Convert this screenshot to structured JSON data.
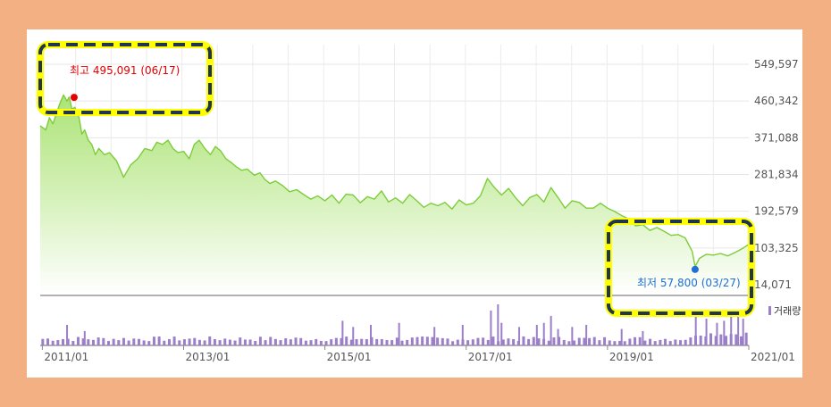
{
  "chart_data": {
    "type": "area",
    "colors": {
      "line": "#7ccd3a",
      "fill_top": "#a8e26f",
      "fill_bottom": "#ffffff",
      "volume": "#9b7fc9",
      "high": "#e60000",
      "low": "#1f6fd6",
      "highlight_border": "#ffff00",
      "highlight_inner": "#1f3550"
    },
    "y_ticks": [
      "549,597",
      "460,342",
      "371,088",
      "281,834",
      "192,579",
      "103,325",
      "14,071"
    ],
    "y_tick_values": [
      549597,
      460342,
      371088,
      281834,
      192579,
      103325,
      14071
    ],
    "ylim": [
      14071,
      549597
    ],
    "x_ticks": [
      "2011/01",
      "2013/01",
      "2015/01",
      "2017/01",
      "2019/01",
      "2021/01"
    ],
    "x_tick_values": [
      2011.0,
      2013.0,
      2015.0,
      2017.0,
      2019.0,
      2021.0
    ],
    "xlim": [
      2010.97,
      2021.0
    ],
    "volume_legend": "거래량",
    "high_label": "최고 495,091 (06/17)",
    "low_label": "최저 57,800 (03/27)",
    "series": [
      {
        "x": [
          2010.97,
          2011.05,
          2011.1,
          2011.15,
          2011.2,
          2011.25,
          2011.3,
          2011.35,
          2011.38,
          2011.42,
          2011.46,
          2011.52,
          2011.56,
          2011.6,
          2011.65,
          2011.7,
          2011.75,
          2011.8,
          2011.88,
          2011.95,
          2012.05,
          2012.15,
          2012.25,
          2012.35,
          2012.45,
          2012.55,
          2012.62,
          2012.7,
          2012.78,
          2012.85,
          2012.92,
          2013.0,
          2013.08,
          2013.15,
          2013.22,
          2013.3,
          2013.38,
          2013.45,
          2013.52,
          2013.6,
          2013.68,
          2013.75,
          2013.82,
          2013.9,
          2014.0,
          2014.08,
          2014.15,
          2014.22,
          2014.3,
          2014.4,
          2014.5,
          2014.6,
          2014.7,
          2014.8,
          2014.9,
          2015.0,
          2015.1,
          2015.2,
          2015.3,
          2015.4,
          2015.5,
          2015.6,
          2015.7,
          2015.8,
          2015.9,
          2016.0,
          2016.1,
          2016.2,
          2016.3,
          2016.4,
          2016.5,
          2016.6,
          2016.7,
          2016.8,
          2016.9,
          2017.0,
          2017.1,
          2017.2,
          2017.3,
          2017.4,
          2017.5,
          2017.6,
          2017.7,
          2017.8,
          2017.9,
          2018.0,
          2018.1,
          2018.2,
          2018.3,
          2018.4,
          2018.5,
          2018.6,
          2018.7,
          2018.8,
          2018.9,
          2019.0,
          2019.1,
          2019.2,
          2019.3,
          2019.4,
          2019.5,
          2019.6,
          2019.7,
          2019.8,
          2019.9,
          2020.0,
          2020.1,
          2020.2,
          2020.24,
          2020.3,
          2020.4,
          2020.5,
          2020.6,
          2020.7,
          2020.8,
          2020.9,
          2021.0
        ],
        "values": [
          400000,
          390000,
          420000,
          405000,
          430000,
          455000,
          475000,
          460000,
          470000,
          440000,
          445000,
          420000,
          380000,
          390000,
          365000,
          355000,
          330000,
          345000,
          330000,
          335000,
          315000,
          275000,
          305000,
          320000,
          345000,
          340000,
          360000,
          355000,
          365000,
          345000,
          335000,
          338000,
          320000,
          355000,
          365000,
          345000,
          330000,
          350000,
          340000,
          320000,
          310000,
          300000,
          292000,
          295000,
          280000,
          286000,
          270000,
          260000,
          266000,
          255000,
          240000,
          245000,
          233000,
          222000,
          230000,
          218000,
          232000,
          212000,
          234000,
          232000,
          213000,
          228000,
          222000,
          242000,
          215000,
          225000,
          212000,
          233000,
          218000,
          202000,
          212000,
          206000,
          214000,
          198000,
          220000,
          208000,
          212000,
          230000,
          272000,
          250000,
          232000,
          248000,
          225000,
          206000,
          226000,
          233000,
          215000,
          250000,
          226000,
          200000,
          218000,
          214000,
          200000,
          200000,
          212000,
          200000,
          192000,
          182000,
          174000,
          157000,
          160000,
          146000,
          153000,
          144000,
          134000,
          136000,
          128000,
          95000,
          57800,
          78000,
          88000,
          86000,
          90000,
          84000,
          92000,
          101000,
          112000
        ]
      }
    ],
    "high_point": {
      "x": 2011.45,
      "y": 495091
    },
    "low_point": {
      "x": 2020.24,
      "y": 57800
    },
    "volume": {
      "baseline_count": 140,
      "spikes": [
        {
          "x": 2011.35,
          "v": 0.5
        },
        {
          "x": 2011.6,
          "v": 0.35
        },
        {
          "x": 2015.25,
          "v": 0.6
        },
        {
          "x": 2015.4,
          "v": 0.45
        },
        {
          "x": 2015.65,
          "v": 0.5
        },
        {
          "x": 2016.05,
          "v": 0.55
        },
        {
          "x": 2016.55,
          "v": 0.45
        },
        {
          "x": 2016.95,
          "v": 0.5
        },
        {
          "x": 2017.35,
          "v": 0.85
        },
        {
          "x": 2017.45,
          "v": 1.0
        },
        {
          "x": 2017.5,
          "v": 0.55
        },
        {
          "x": 2017.75,
          "v": 0.45
        },
        {
          "x": 2018.0,
          "v": 0.5
        },
        {
          "x": 2018.1,
          "v": 0.55
        },
        {
          "x": 2018.2,
          "v": 0.72
        },
        {
          "x": 2018.3,
          "v": 0.4
        },
        {
          "x": 2018.5,
          "v": 0.45
        },
        {
          "x": 2018.7,
          "v": 0.5
        },
        {
          "x": 2019.2,
          "v": 0.4
        },
        {
          "x": 2019.5,
          "v": 0.35
        },
        {
          "x": 2020.25,
          "v": 0.75
        },
        {
          "x": 2020.4,
          "v": 0.65
        },
        {
          "x": 2020.55,
          "v": 0.55
        },
        {
          "x": 2020.65,
          "v": 0.6
        },
        {
          "x": 2020.75,
          "v": 0.7
        },
        {
          "x": 2020.85,
          "v": 0.8
        },
        {
          "x": 2020.92,
          "v": 0.65
        }
      ]
    }
  }
}
